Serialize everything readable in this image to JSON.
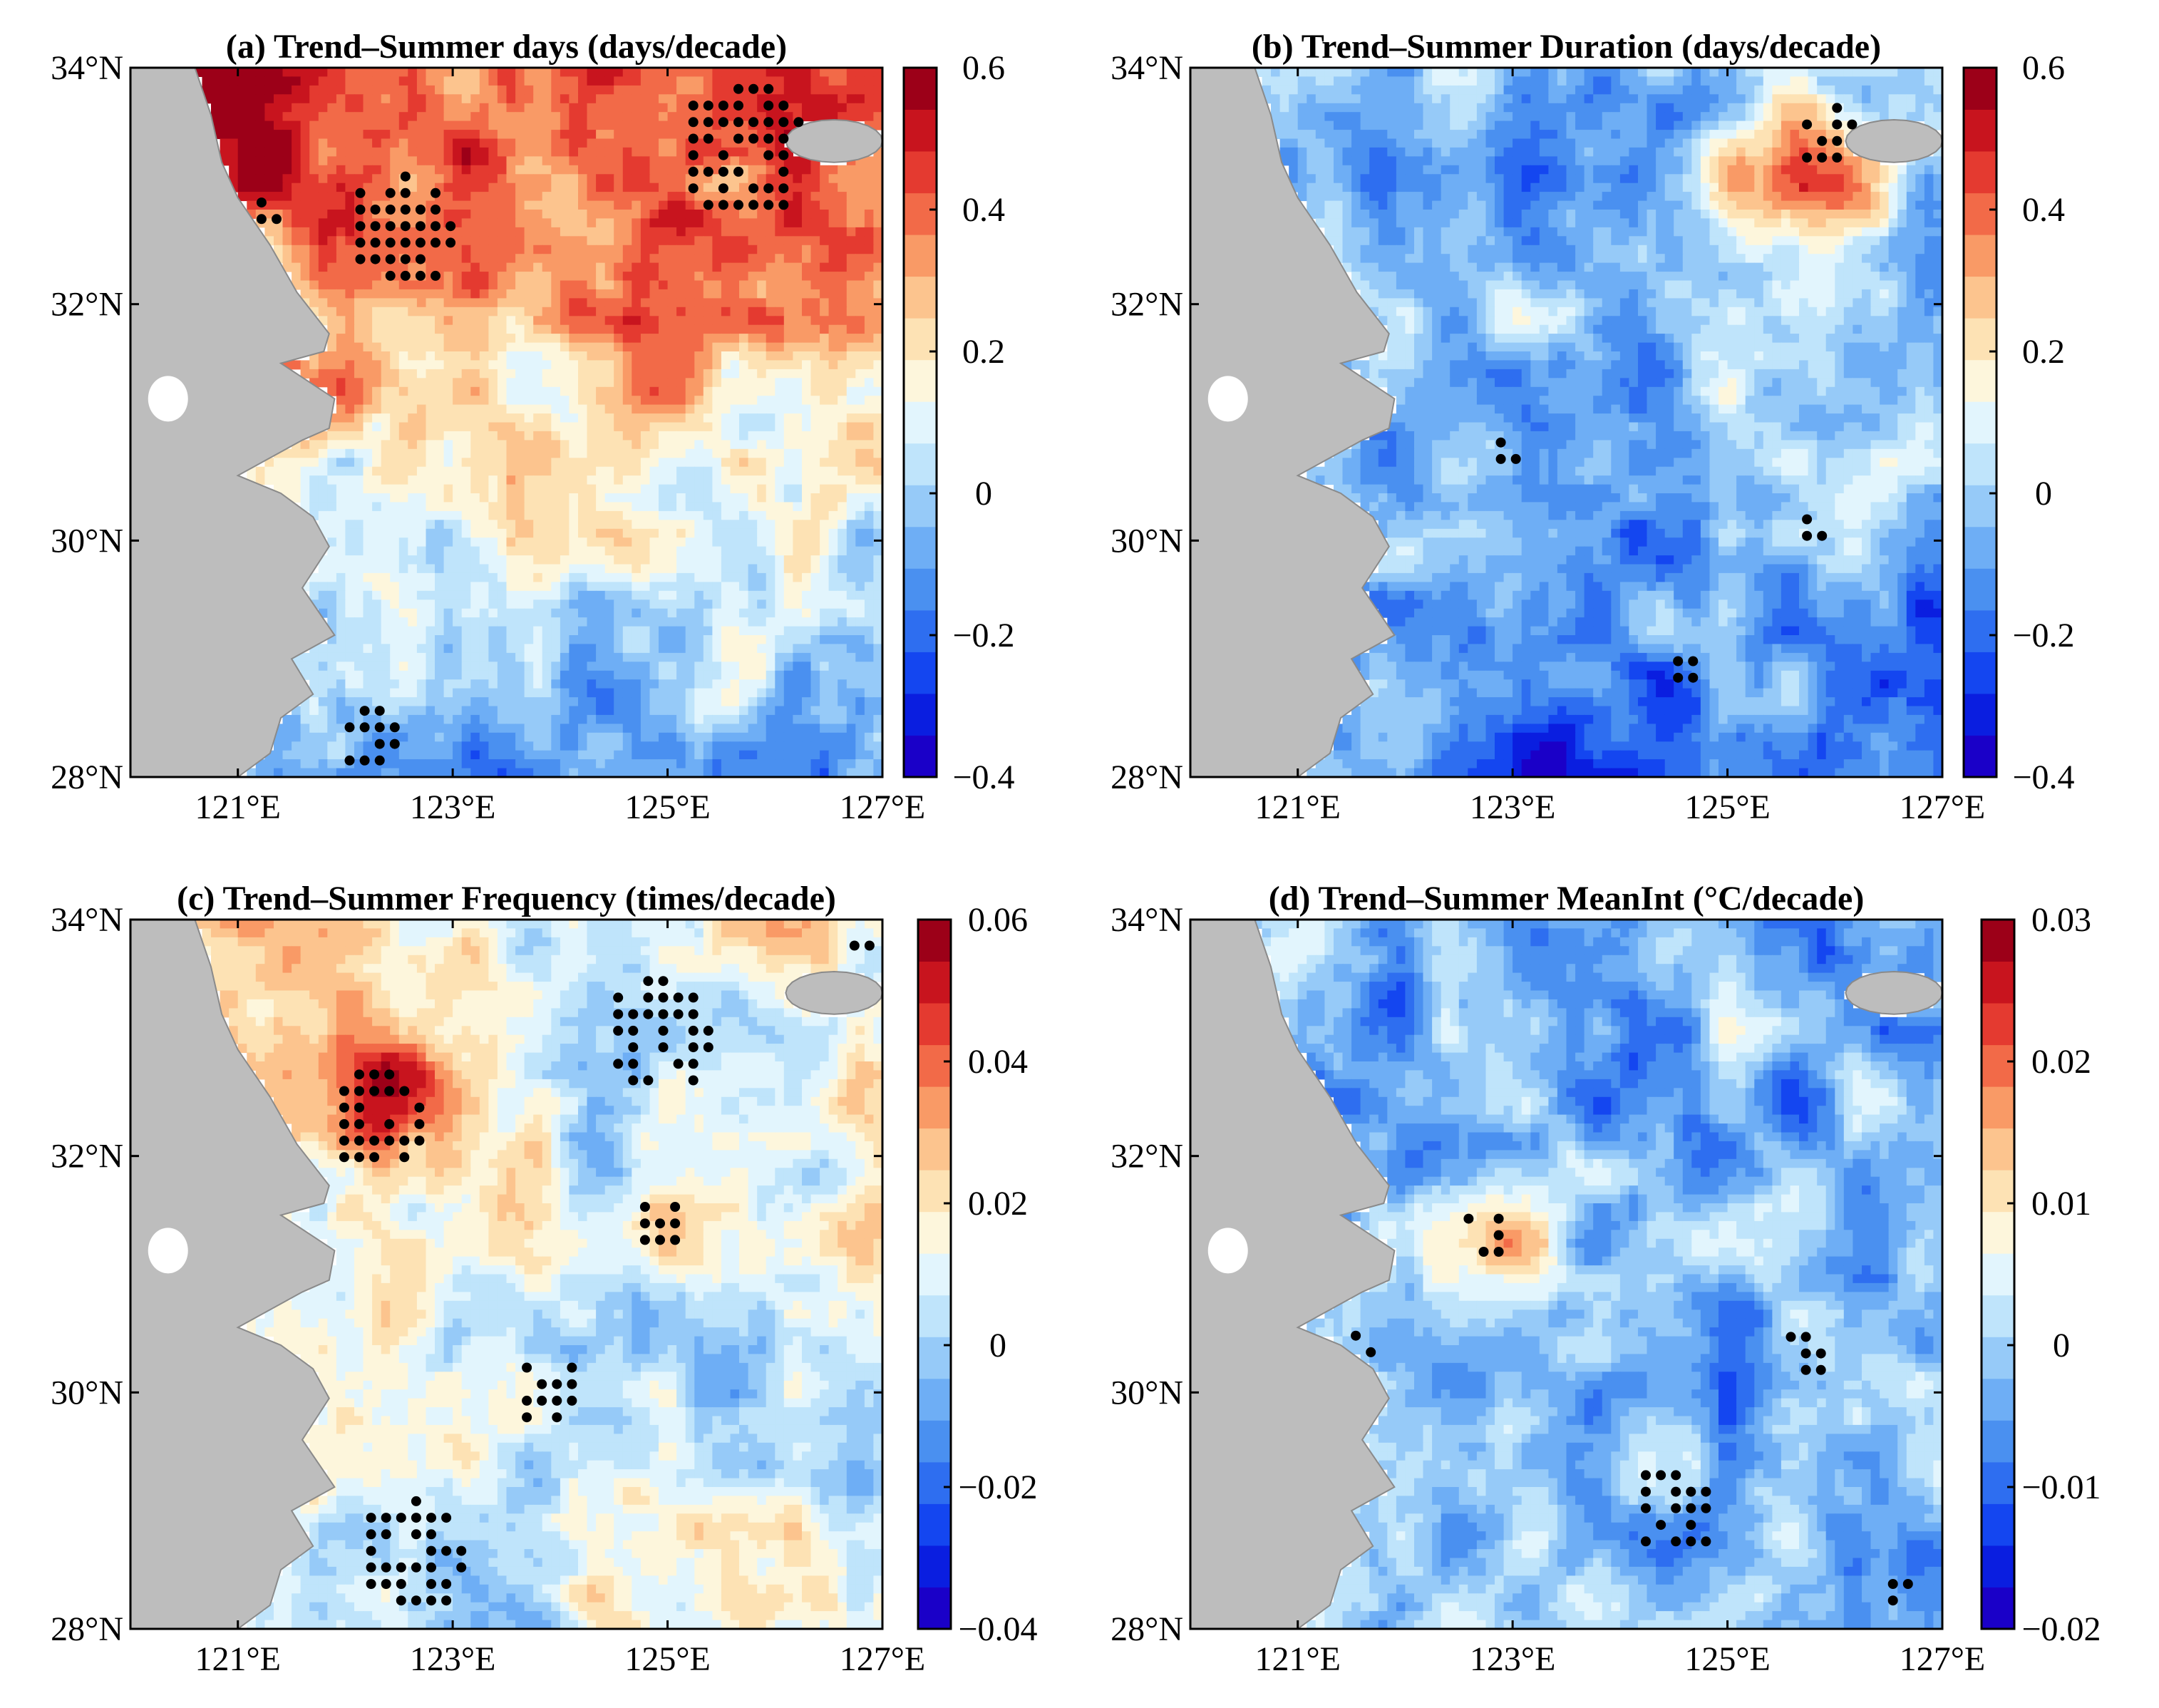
{
  "chart_data": [
    {
      "type": "heatmap",
      "panel": "a",
      "title": "(a) Trend–Summer days (days/decade)",
      "x_ticks": [
        "121°E",
        "123°E",
        "125°E",
        "127°E"
      ],
      "y_ticks": [
        "34°N",
        "32°N",
        "30°N",
        "28°N"
      ],
      "lon_range": [
        120,
        127
      ],
      "lat_range": [
        28,
        34
      ],
      "colorbar": {
        "min": -0.4,
        "max": 0.6,
        "tick_labels": [
          "0.6",
          "0.4",
          "0.2",
          "0",
          "−0.2",
          "−0.4"
        ]
      },
      "pattern": {
        "north_mean": 0.45,
        "south_mean": -0.05,
        "west_offset": 0.1
      },
      "significant_regions": [
        {
          "lon": 122.5,
          "lat": 32.6,
          "spread": 0.5
        },
        {
          "lon": 125.7,
          "lat": 33.3,
          "spread": 0.6
        },
        {
          "lon": 121.1,
          "lat": 32.6,
          "spread": 0.3
        },
        {
          "lon": 122.2,
          "lat": 28.3,
          "spread": 0.3
        }
      ]
    },
    {
      "type": "heatmap",
      "panel": "b",
      "title": "(b) Trend–Summer Duration (days/decade)",
      "x_ticks": [
        "121°E",
        "123°E",
        "125°E",
        "127°E"
      ],
      "y_ticks": [
        "34°N",
        "32°N",
        "30°N",
        "28°N"
      ],
      "lon_range": [
        120,
        127
      ],
      "lat_range": [
        28,
        34
      ],
      "colorbar": {
        "min": -0.4,
        "max": 0.6,
        "tick_labels": [
          "0.6",
          "0.4",
          "0.2",
          "0",
          "−0.2",
          "−0.4"
        ]
      },
      "pattern": {
        "north_mean": 0.0,
        "south_mean": -0.15,
        "west_offset": 0.0,
        "hotspot": {
          "lon": 125.8,
          "lat": 33.0,
          "amp": 0.5
        }
      },
      "significant_regions": [
        {
          "lon": 125.9,
          "lat": 33.4,
          "spread": 0.3
        },
        {
          "lon": 122.9,
          "lat": 30.7,
          "spread": 0.15
        },
        {
          "lon": 125.8,
          "lat": 30.1,
          "spread": 0.2
        },
        {
          "lon": 124.6,
          "lat": 28.9,
          "spread": 0.2
        }
      ]
    },
    {
      "type": "heatmap",
      "panel": "c",
      "title": "(c) Trend–Summer Frequency (times/decade)",
      "x_ticks": [
        "121°E",
        "123°E",
        "125°E",
        "127°E"
      ],
      "y_ticks": [
        "34°N",
        "32°N",
        "30°N",
        "28°N"
      ],
      "lon_range": [
        120,
        127
      ],
      "lat_range": [
        28,
        34
      ],
      "colorbar": {
        "min": -0.04,
        "max": 0.06,
        "tick_labels": [
          "0.06",
          "0.04",
          "0.02",
          "0",
          "−0.02",
          "−0.04"
        ]
      },
      "pattern": {
        "north_mean": 0.015,
        "south_mean": 0.005,
        "west_offset": 0.015,
        "hotspot": {
          "lon": 122.3,
          "lat": 32.5,
          "amp": 0.035
        }
      },
      "significant_regions": [
        {
          "lon": 122.3,
          "lat": 32.3,
          "spread": 0.45
        },
        {
          "lon": 124.9,
          "lat": 33.0,
          "spread": 0.5
        },
        {
          "lon": 124.9,
          "lat": 31.4,
          "spread": 0.25
        },
        {
          "lon": 123.9,
          "lat": 30.0,
          "spread": 0.35
        },
        {
          "lon": 122.6,
          "lat": 28.6,
          "spread": 0.5
        },
        {
          "lon": 126.8,
          "lat": 33.7,
          "spread": 0.2
        }
      ]
    },
    {
      "type": "heatmap",
      "panel": "d",
      "title": "(d) Trend–Summer MeanInt (°C/decade)",
      "x_ticks": [
        "121°E",
        "123°E",
        "125°E",
        "127°E"
      ],
      "y_ticks": [
        "34°N",
        "32°N",
        "30°N",
        "28°N"
      ],
      "lon_range": [
        120,
        127
      ],
      "lat_range": [
        28,
        34
      ],
      "colorbar": {
        "min": -0.02,
        "max": 0.03,
        "tick_labels": [
          "0.03",
          "0.02",
          "0.01",
          "0",
          "−0.01",
          "−0.02"
        ]
      },
      "pattern": {
        "north_mean": -0.004,
        "south_mean": -0.002,
        "west_offset": 0.0,
        "hotspot": {
          "lon": 122.7,
          "lat": 31.3,
          "amp": 0.018
        }
      },
      "significant_regions": [
        {
          "lon": 122.7,
          "lat": 31.3,
          "spread": 0.25
        },
        {
          "lon": 121.6,
          "lat": 30.4,
          "spread": 0.2
        },
        {
          "lon": 125.7,
          "lat": 30.3,
          "spread": 0.25
        },
        {
          "lon": 124.5,
          "lat": 29.0,
          "spread": 0.4
        },
        {
          "lon": 126.6,
          "lat": 28.3,
          "spread": 0.2
        }
      ]
    }
  ],
  "colormap": [
    "#1a00c8",
    "#0a1ee0",
    "#1446f0",
    "#2e6ef0",
    "#4a90f0",
    "#6eaef5",
    "#96caf8",
    "#bfe4fb",
    "#e2f5fd",
    "#fdf6dc",
    "#fde2b4",
    "#fcc48e",
    "#f99a66",
    "#f26a48",
    "#e43a30",
    "#c8141e",
    "#9c0018"
  ],
  "land_color": "#bdbdbd",
  "dot_color": "#000000"
}
